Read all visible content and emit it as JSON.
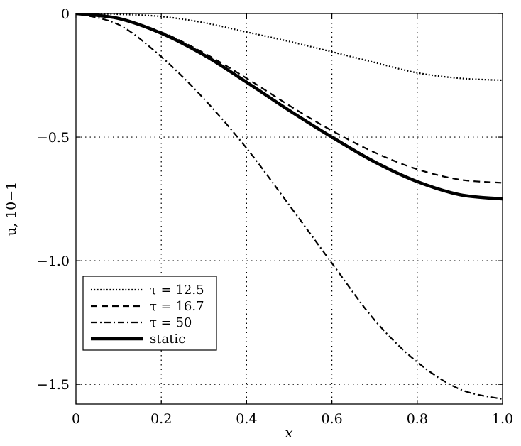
{
  "chart_data": {
    "type": "line",
    "xlabel": "x",
    "ylabel": "u, 10−1",
    "xlim": [
      0,
      1.0
    ],
    "ylim": [
      -1.58,
      0.0
    ],
    "grid": true,
    "legend_position": "lower-left",
    "x_ticks": [
      {
        "value": 0,
        "label": "0"
      },
      {
        "value": 0.2,
        "label": "0.2"
      },
      {
        "value": 0.4,
        "label": "0.4"
      },
      {
        "value": 0.6,
        "label": "0.6"
      },
      {
        "value": 0.8,
        "label": "0.8"
      },
      {
        "value": 1.0,
        "label": "1.0"
      }
    ],
    "y_ticks": [
      {
        "value": 0,
        "label": "0"
      },
      {
        "value": -0.5,
        "label": "−0.5"
      },
      {
        "value": -1.0,
        "label": "−1.0"
      },
      {
        "value": -1.5,
        "label": "−1.5"
      }
    ],
    "x": [
      0,
      0.1,
      0.2,
      0.3,
      0.4,
      0.5,
      0.6,
      0.7,
      0.8,
      0.9,
      1.0
    ],
    "series": [
      {
        "name": "τ = 12.5",
        "style": "dotted",
        "values": [
          0,
          -0.003,
          -0.012,
          -0.037,
          -0.075,
          -0.113,
          -0.155,
          -0.198,
          -0.24,
          -0.262,
          -0.27
        ]
      },
      {
        "name": "τ = 16.7",
        "style": "dashed",
        "values": [
          0,
          -0.02,
          -0.075,
          -0.16,
          -0.262,
          -0.372,
          -0.474,
          -0.562,
          -0.63,
          -0.672,
          -0.685
        ]
      },
      {
        "name": "τ = 50",
        "style": "dashdot",
        "values": [
          0,
          -0.045,
          -0.175,
          -0.345,
          -0.545,
          -0.775,
          -1.01,
          -1.24,
          -1.41,
          -1.52,
          -1.56
        ]
      },
      {
        "name": "static",
        "style": "solid-thick",
        "values": [
          0,
          -0.02,
          -0.08,
          -0.168,
          -0.278,
          -0.392,
          -0.5,
          -0.6,
          -0.68,
          -0.733,
          -0.75
        ]
      }
    ]
  }
}
